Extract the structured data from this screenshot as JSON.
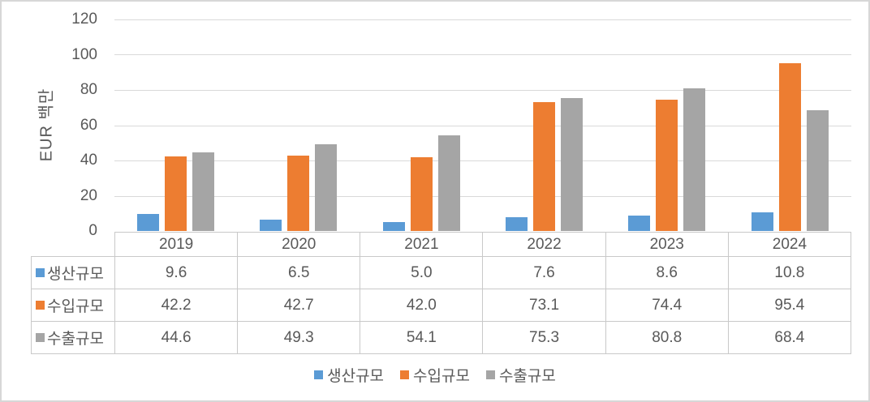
{
  "frame": {
    "background": "#ffffff",
    "border_color": "#d7d7d7"
  },
  "chart_data": {
    "type": "bar",
    "title": "",
    "ylabel": "EUR 백만",
    "categories": [
      "2019",
      "2020",
      "2021",
      "2022",
      "2023",
      "2024"
    ],
    "series": [
      {
        "id": "production",
        "name": "생산규모",
        "color": "#5B9BD5",
        "values": [
          9.6,
          6.5,
          5.0,
          7.6,
          8.6,
          10.8
        ]
      },
      {
        "id": "import",
        "name": "수입규모",
        "color": "#ED7D31",
        "values": [
          42.2,
          42.7,
          42.0,
          73.1,
          74.4,
          95.4
        ]
      },
      {
        "id": "export",
        "name": "수출규모",
        "color": "#A5A5A5",
        "values": [
          44.6,
          49.3,
          54.1,
          75.3,
          80.8,
          68.4
        ]
      }
    ],
    "ylim": [
      0,
      120
    ],
    "yticks": [
      0,
      20,
      40,
      60,
      80,
      100,
      120
    ],
    "grid": true,
    "gridline_color": "#d9d9d9",
    "text_color": "#595959",
    "table_border_color": "#c9c9c9",
    "legend_position": "bottom",
    "data_table": true,
    "value_decimals": 1
  }
}
